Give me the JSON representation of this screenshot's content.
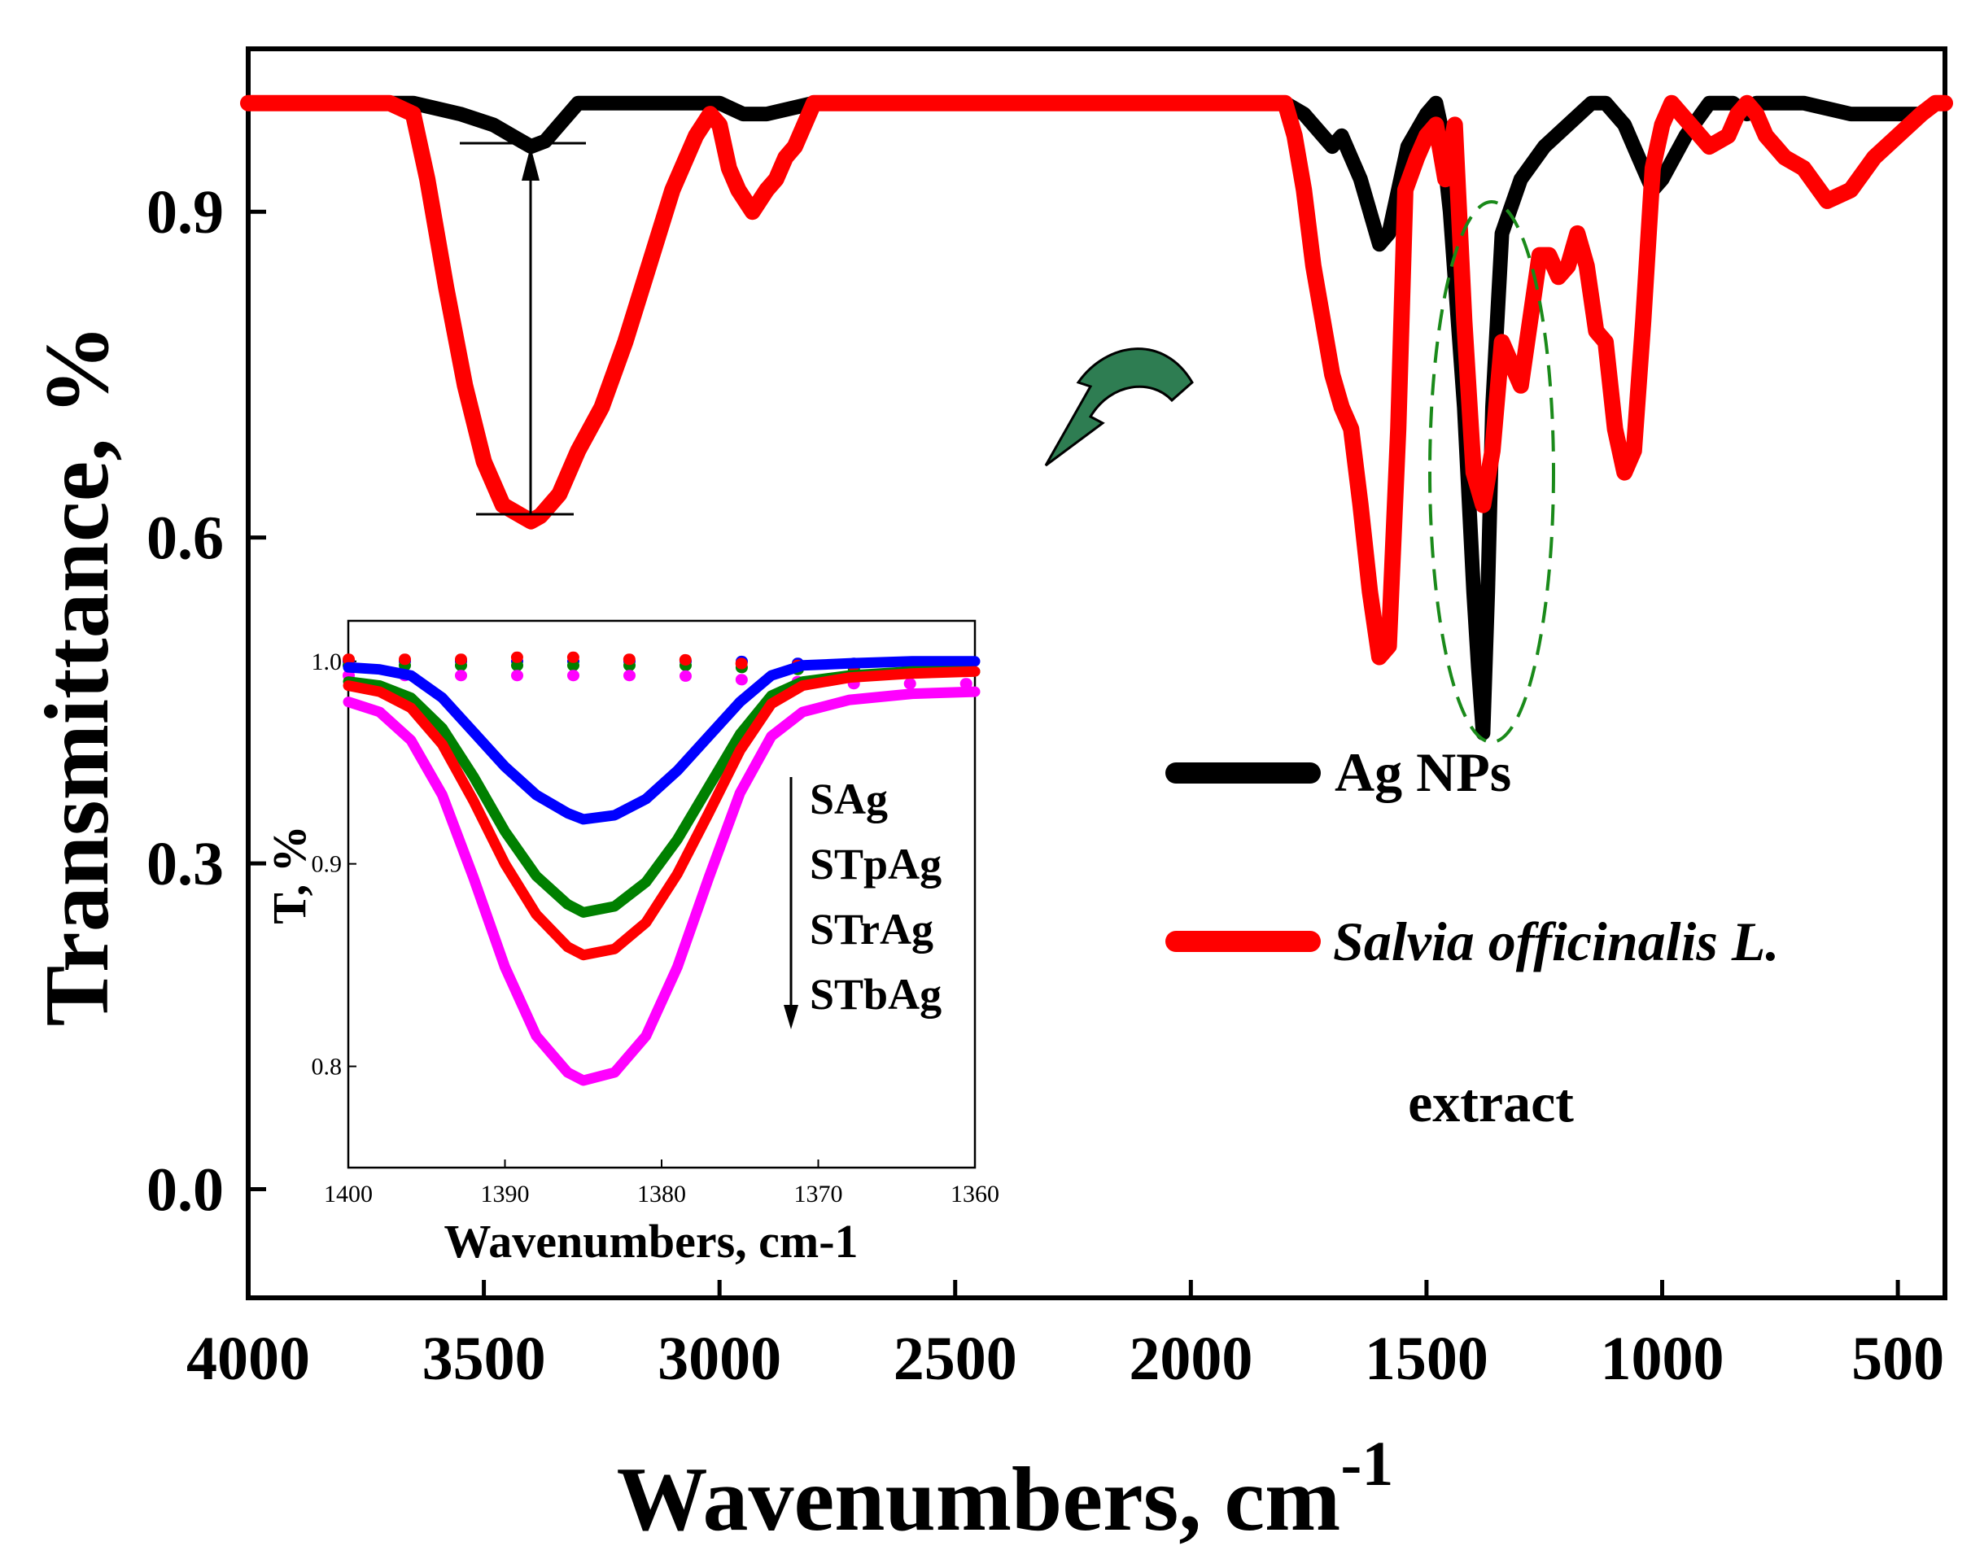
{
  "chart_data": [
    {
      "type": "line",
      "title": "",
      "xlabel": "Wavenumbers, cm",
      "xlabel_superscript": "-1",
      "ylabel": "Transmittance, %",
      "xlim": [
        4000,
        400
      ],
      "ylim": [
        -0.1,
        1.05
      ],
      "x_ticks": [
        4000,
        3500,
        3000,
        2500,
        2000,
        1500,
        1000,
        500
      ],
      "x_tick_labels": [
        "4000",
        "3500",
        "3000",
        "2500",
        "2000",
        "1500",
        "1000",
        "500"
      ],
      "y_ticks": [
        0.0,
        0.3,
        0.6,
        0.9
      ],
      "y_tick_labels": [
        "0.0",
        "0.3",
        "0.6",
        "0.9"
      ],
      "legend_position": "right",
      "series": [
        {
          "name": "Ag NPs",
          "color": "#000000",
          "x": [
            4000,
            3800,
            3650,
            3550,
            3480,
            3440,
            3400,
            3370,
            3340,
            3300,
            3250,
            3100,
            3000,
            2950,
            2900,
            2800,
            2500,
            2000,
            1800,
            1760,
            1720,
            1700,
            1680,
            1640,
            1600,
            1580,
            1540,
            1500,
            1480,
            1470,
            1450,
            1420,
            1400,
            1390,
            1380,
            1370,
            1360,
            1340,
            1300,
            1250,
            1200,
            1150,
            1120,
            1080,
            1050,
            1020,
            1000,
            950,
            900,
            850,
            820,
            800,
            700,
            600,
            500,
            450,
            420,
            400
          ],
          "y": [
            1.0,
            1.0,
            1.0,
            0.99,
            0.98,
            0.97,
            0.96,
            0.965,
            0.98,
            1.0,
            1.0,
            1.0,
            1.0,
            0.99,
            0.99,
            1.0,
            1.0,
            1.0,
            1.0,
            0.99,
            0.97,
            0.96,
            0.97,
            0.93,
            0.87,
            0.88,
            0.96,
            0.99,
            1.0,
            0.98,
            0.9,
            0.72,
            0.55,
            0.48,
            0.42,
            0.55,
            0.72,
            0.88,
            0.93,
            0.96,
            0.98,
            1.0,
            1.0,
            0.98,
            0.95,
            0.92,
            0.93,
            0.97,
            1.0,
            1.0,
            0.99,
            1.0,
            1.0,
            0.99,
            0.99,
            0.99,
            1.0,
            1.0
          ]
        },
        {
          "name": "Salvia officinalis L.",
          "name_line2": "extract",
          "color": "#ff0000",
          "x": [
            4000,
            3750,
            3700,
            3650,
            3620,
            3580,
            3540,
            3500,
            3460,
            3420,
            3400,
            3380,
            3340,
            3300,
            3250,
            3200,
            3150,
            3100,
            3050,
            3020,
            3000,
            2980,
            2960,
            2930,
            2900,
            2880,
            2860,
            2840,
            2800,
            2500,
            2000,
            1800,
            1780,
            1760,
            1740,
            1720,
            1700,
            1680,
            1660,
            1640,
            1620,
            1600,
            1580,
            1560,
            1545,
            1520,
            1500,
            1480,
            1460,
            1440,
            1420,
            1400,
            1380,
            1360,
            1340,
            1320,
            1300,
            1280,
            1260,
            1240,
            1220,
            1200,
            1180,
            1160,
            1140,
            1120,
            1100,
            1080,
            1060,
            1040,
            1020,
            1000,
            980,
            960,
            940,
            900,
            860,
            840,
            820,
            800,
            780,
            760,
            740,
            700,
            650,
            600,
            550,
            500,
            450,
            420,
            400
          ],
          "y": [
            1.0,
            1.0,
            1.0,
            0.99,
            0.93,
            0.83,
            0.74,
            0.67,
            0.63,
            0.62,
            0.615,
            0.62,
            0.64,
            0.68,
            0.72,
            0.78,
            0.85,
            0.92,
            0.97,
            0.99,
            0.98,
            0.94,
            0.92,
            0.9,
            0.92,
            0.93,
            0.95,
            0.96,
            1.0,
            1.0,
            1.0,
            1.0,
            0.97,
            0.92,
            0.85,
            0.8,
            0.75,
            0.72,
            0.7,
            0.63,
            0.55,
            0.49,
            0.5,
            0.7,
            0.92,
            0.95,
            0.97,
            0.98,
            0.93,
            0.98,
            0.8,
            0.66,
            0.63,
            0.68,
            0.78,
            0.76,
            0.74,
            0.8,
            0.86,
            0.86,
            0.84,
            0.85,
            0.88,
            0.85,
            0.79,
            0.78,
            0.7,
            0.66,
            0.68,
            0.8,
            0.94,
            0.98,
            1.0,
            0.99,
            0.98,
            0.96,
            0.97,
            0.99,
            1.0,
            0.99,
            0.97,
            0.96,
            0.95,
            0.94,
            0.91,
            0.92,
            0.95,
            0.97,
            0.99,
            1.0,
            1.0
          ]
        }
      ]
    },
    {
      "type": "line",
      "title": "",
      "xlabel": "Wavenumbers, cm-1",
      "ylabel": "T, %",
      "xlim": [
        1400,
        1360
      ],
      "ylim": [
        0.75,
        1.02
      ],
      "x_ticks": [
        1400,
        1390,
        1380,
        1370,
        1360
      ],
      "x_tick_labels": [
        "1400",
        "1390",
        "1380",
        "1370",
        "1360"
      ],
      "y_ticks": [
        0.8,
        0.9,
        1.0
      ],
      "y_tick_labels": [
        "0.8",
        "0.9",
        "1.0"
      ],
      "legend_position": "right",
      "legend_note": "arrow indicating decreasing transmittance order",
      "x": [
        1400,
        1398,
        1396,
        1394,
        1392,
        1390,
        1388,
        1386,
        1385,
        1383,
        1381,
        1379,
        1377,
        1375,
        1373,
        1371,
        1368,
        1364,
        1360
      ],
      "series": [
        {
          "name": "SAg",
          "color": "#0000ff",
          "y": [
            0.997,
            0.996,
            0.993,
            0.982,
            0.965,
            0.948,
            0.934,
            0.925,
            0.922,
            0.924,
            0.932,
            0.946,
            0.963,
            0.98,
            0.993,
            0.998,
            0.999,
            1.0,
            1.0
          ],
          "dotted": [
            1.0,
            1.0,
            1.0,
            1.0,
            1.0,
            1.0,
            1.0,
            1.0,
            1.0,
            1.0,
            1.0,
            1.0,
            1.0,
            1.0,
            0.999,
            0.999,
            0.999,
            0.999,
            0.999
          ]
        },
        {
          "name": "STpAg",
          "color": "#008000",
          "y": [
            0.99,
            0.988,
            0.982,
            0.967,
            0.943,
            0.916,
            0.894,
            0.88,
            0.876,
            0.879,
            0.891,
            0.912,
            0.938,
            0.964,
            0.983,
            0.99,
            0.993,
            0.995,
            0.995
          ],
          "dotted": [
            0.998,
            0.998,
            0.998,
            0.998,
            0.998,
            0.998,
            0.998,
            0.998,
            0.998,
            0.998,
            0.998,
            0.998,
            0.998,
            0.997,
            0.996,
            0.996,
            0.996,
            0.996,
            0.996
          ]
        },
        {
          "name": "STrAg",
          "color": "#ff0000",
          "y": [
            0.988,
            0.985,
            0.977,
            0.959,
            0.931,
            0.9,
            0.875,
            0.859,
            0.855,
            0.858,
            0.871,
            0.895,
            0.925,
            0.956,
            0.979,
            0.988,
            0.992,
            0.994,
            0.995
          ],
          "dotted": [
            1.001,
            1.001,
            1.001,
            1.001,
            1.001,
            1.002,
            1.002,
            1.002,
            1.002,
            1.001,
            1.001,
            1.001,
            1.0,
            0.999,
            0.998,
            0.998,
            0.998,
            0.998,
            0.998
          ]
        },
        {
          "name": "STbAg",
          "color": "#ff00ff",
          "y": [
            0.98,
            0.975,
            0.961,
            0.934,
            0.893,
            0.849,
            0.815,
            0.797,
            0.793,
            0.797,
            0.815,
            0.849,
            0.893,
            0.935,
            0.963,
            0.975,
            0.981,
            0.984,
            0.985
          ],
          "dotted": [
            0.993,
            0.993,
            0.993,
            0.993,
            0.993,
            0.993,
            0.993,
            0.993,
            0.993,
            0.993,
            0.993,
            0.993,
            0.992,
            0.991,
            0.99,
            0.99,
            0.989,
            0.989,
            0.989
          ]
        }
      ]
    }
  ]
}
